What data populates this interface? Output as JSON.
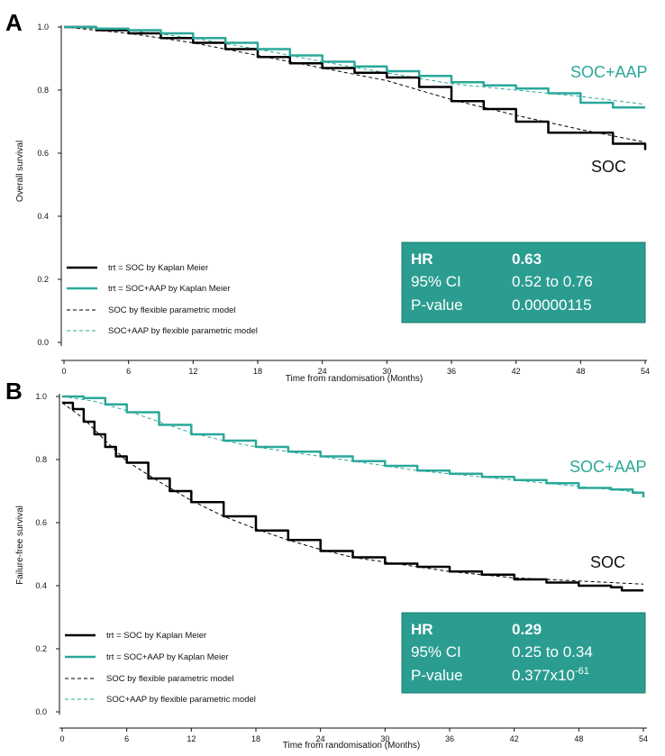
{
  "colors": {
    "soc": "#000000",
    "soc_aap": "#2aa89a",
    "stat_box_fill": "#2a9d90",
    "stat_box_border": "#1f7a70",
    "panel_letter": "#2aa89a"
  },
  "chart_data": [
    {
      "type": "line",
      "panel_label": "A",
      "title": "",
      "xlabel": "Time from randomisation (Months)",
      "ylabel": "Overall survival",
      "xlim": [
        0,
        54
      ],
      "ylim": [
        0.0,
        1.0
      ],
      "x_ticks": [
        "0",
        "6",
        "12",
        "18",
        "24",
        "30",
        "36",
        "42",
        "48",
        "54"
      ],
      "y_ticks": [
        "0.0",
        "0.2",
        "0.4",
        "0.6",
        "0.8",
        "1.0"
      ],
      "grid": false,
      "legend_position": "bottom-left",
      "legend": [
        {
          "label": "trt = SOC by Kaplan Meier",
          "style": "solid",
          "series": "soc"
        },
        {
          "label": "trt = SOC+AAP by Kaplan Meier",
          "style": "solid",
          "series": "soc_aap"
        },
        {
          "label": "SOC by flexible parametric model",
          "style": "dashed",
          "series": "soc"
        },
        {
          "label": "SOC+AAP by flexible parametric model",
          "style": "dashed",
          "series": "soc_aap"
        }
      ],
      "curve_labels": {
        "soc_aap": "SOC+AAP",
        "soc": "SOC"
      },
      "series": [
        {
          "name": "trt = SOC by Kaplan Meier",
          "key": "soc",
          "style": "km",
          "x": [
            0,
            3,
            6,
            9,
            12,
            15,
            18,
            21,
            24,
            27,
            30,
            33,
            36,
            39,
            42,
            45,
            48,
            51,
            54
          ],
          "y": [
            1.0,
            0.99,
            0.98,
            0.965,
            0.95,
            0.93,
            0.905,
            0.885,
            0.87,
            0.855,
            0.84,
            0.81,
            0.765,
            0.74,
            0.7,
            0.665,
            0.665,
            0.63,
            0.61
          ]
        },
        {
          "name": "trt = SOC+AAP by Kaplan Meier",
          "key": "soc_aap",
          "style": "km",
          "x": [
            0,
            3,
            6,
            9,
            12,
            15,
            18,
            21,
            24,
            27,
            30,
            33,
            36,
            39,
            42,
            45,
            48,
            51,
            54
          ],
          "y": [
            1.0,
            0.995,
            0.99,
            0.98,
            0.965,
            0.95,
            0.93,
            0.91,
            0.89,
            0.875,
            0.86,
            0.845,
            0.825,
            0.815,
            0.805,
            0.79,
            0.76,
            0.745,
            0.745
          ]
        },
        {
          "name": "SOC by flexible parametric model",
          "key": "soc",
          "style": "fpm",
          "x": [
            0,
            6,
            12,
            18,
            24,
            30,
            36,
            42,
            48,
            54
          ],
          "y": [
            1.0,
            0.98,
            0.95,
            0.91,
            0.87,
            0.83,
            0.77,
            0.72,
            0.675,
            0.635
          ]
        },
        {
          "name": "SOC+AAP by flexible parametric model",
          "key": "soc_aap",
          "style": "fpm",
          "x": [
            0,
            6,
            12,
            18,
            24,
            30,
            36,
            42,
            48,
            54
          ],
          "y": [
            1.0,
            0.99,
            0.965,
            0.93,
            0.89,
            0.855,
            0.82,
            0.8,
            0.78,
            0.755
          ]
        }
      ],
      "stats": {
        "hr_label": "HR",
        "hr_value": "0.63",
        "ci_label": "95% CI",
        "ci_value": "0.52 to 0.76",
        "p_label": "P-value",
        "p_value": "0.00000115",
        "p_exp": ""
      }
    },
    {
      "type": "line",
      "panel_label": "B",
      "title": "",
      "xlabel": "Time from randomisation (Months)",
      "ylabel": "Failure-free survival",
      "xlim": [
        0,
        54
      ],
      "ylim": [
        0.0,
        1.0
      ],
      "x_ticks": [
        "0",
        "6",
        "12",
        "18",
        "24",
        "30",
        "36",
        "42",
        "48",
        "54"
      ],
      "y_ticks": [
        "0.0",
        "0.2",
        "0.4",
        "0.6",
        "0.8",
        "1.0"
      ],
      "grid": false,
      "legend_position": "bottom-left",
      "legend": [
        {
          "label": "trt = SOC by Kaplan Meier",
          "style": "solid",
          "series": "soc"
        },
        {
          "label": "trt = SOC+AAP by Kaplan Meier",
          "style": "solid",
          "series": "soc_aap"
        },
        {
          "label": "SOC by flexible parametric model",
          "style": "dashed",
          "series": "soc"
        },
        {
          "label": "SOC+AAP by flexible parametric model",
          "style": "dashed",
          "series": "soc_aap"
        }
      ],
      "curve_labels": {
        "soc_aap": "SOC+AAP",
        "soc": "SOC"
      },
      "series": [
        {
          "name": "trt = SOC by Kaplan Meier",
          "key": "soc",
          "style": "km",
          "x": [
            0,
            1,
            2,
            3,
            4,
            5,
            6,
            8,
            10,
            12,
            15,
            18,
            21,
            24,
            27,
            30,
            33,
            36,
            39,
            42,
            45,
            48,
            51,
            52,
            54
          ],
          "y": [
            0.98,
            0.96,
            0.92,
            0.88,
            0.84,
            0.81,
            0.79,
            0.74,
            0.7,
            0.665,
            0.62,
            0.575,
            0.545,
            0.51,
            0.49,
            0.47,
            0.46,
            0.445,
            0.435,
            0.42,
            0.41,
            0.4,
            0.395,
            0.385,
            0.385
          ]
        },
        {
          "name": "trt = SOC+AAP by Kaplan Meier",
          "key": "soc_aap",
          "style": "km",
          "x": [
            0,
            2,
            4,
            6,
            9,
            12,
            15,
            18,
            21,
            24,
            27,
            30,
            33,
            36,
            39,
            42,
            45,
            48,
            51,
            53,
            54
          ],
          "y": [
            1.0,
            0.995,
            0.975,
            0.95,
            0.91,
            0.88,
            0.86,
            0.84,
            0.825,
            0.81,
            0.795,
            0.78,
            0.765,
            0.755,
            0.745,
            0.735,
            0.725,
            0.71,
            0.705,
            0.695,
            0.68
          ]
        },
        {
          "name": "SOC by flexible parametric model",
          "key": "soc",
          "style": "fpm",
          "x": [
            0,
            2,
            4,
            6,
            9,
            12,
            15,
            18,
            21,
            24,
            27,
            30,
            33,
            36,
            39,
            42,
            45,
            48,
            51,
            54
          ],
          "y": [
            0.98,
            0.93,
            0.86,
            0.795,
            0.73,
            0.67,
            0.62,
            0.58,
            0.545,
            0.515,
            0.49,
            0.475,
            0.46,
            0.445,
            0.435,
            0.425,
            0.42,
            0.415,
            0.41,
            0.405
          ]
        },
        {
          "name": "SOC+AAP by flexible parametric model",
          "key": "soc_aap",
          "style": "fpm",
          "x": [
            0,
            3,
            6,
            9,
            12,
            15,
            18,
            21,
            24,
            27,
            30,
            33,
            36,
            39,
            42,
            45,
            48,
            51,
            54
          ],
          "y": [
            1.0,
            0.985,
            0.955,
            0.92,
            0.885,
            0.86,
            0.84,
            0.825,
            0.81,
            0.795,
            0.78,
            0.765,
            0.755,
            0.745,
            0.735,
            0.725,
            0.715,
            0.705,
            0.695
          ]
        }
      ],
      "stats": {
        "hr_label": "HR",
        "hr_value": "0.29",
        "ci_label": "95% CI",
        "ci_value": "0.25 to 0.34",
        "p_label": "P-value",
        "p_value": "0.377x10",
        "p_exp": "-61"
      }
    }
  ]
}
